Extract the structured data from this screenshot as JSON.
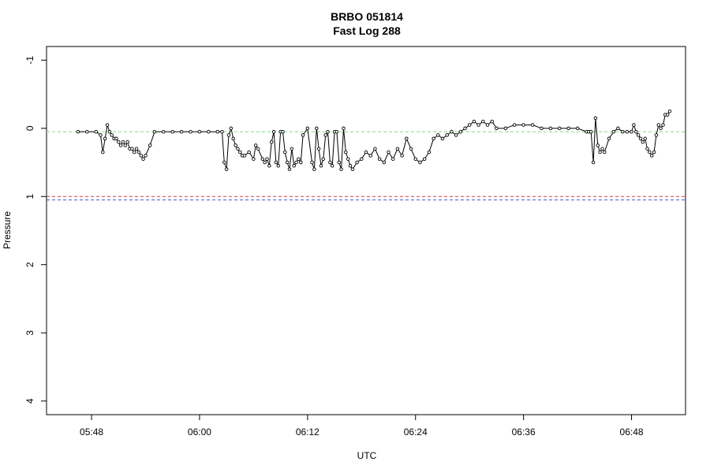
{
  "chart_data": {
    "type": "line",
    "title": "BRBO 051814",
    "subtitle": "Fast Log 288",
    "xlabel": "UTC",
    "ylabel": "Pressure",
    "x_ticks": [
      "05:48",
      "06:00",
      "06:12",
      "06:24",
      "06:36",
      "06:48"
    ],
    "y_ticks": [
      "-1",
      "0",
      "1",
      "2",
      "3",
      "4"
    ],
    "xlim": [
      "05:43",
      "06:54"
    ],
    "ylim": [
      4.2,
      -1.2
    ],
    "y_reversed": true,
    "grid": false,
    "reference_lines": [
      {
        "y": 0.05,
        "color": "#7fdc7f",
        "style": "dashed"
      },
      {
        "y": 1.0,
        "color": "#cc4444",
        "style": "dashed"
      },
      {
        "y": 1.05,
        "color": "#4455cc",
        "style": "dashed"
      }
    ],
    "series": [
      {
        "color": "#000000",
        "marker": "open-circle",
        "x": [
          "05:46:30",
          "05:47:30",
          "05:48:30",
          "05:49:00",
          "05:49:15",
          "05:49:30",
          "05:49:45",
          "05:50:00",
          "05:50:15",
          "05:50:30",
          "05:50:45",
          "05:51:00",
          "05:51:15",
          "05:51:30",
          "05:51:45",
          "05:52:00",
          "05:52:15",
          "05:52:30",
          "05:52:45",
          "05:53:00",
          "05:53:15",
          "05:53:30",
          "05:53:45",
          "05:54:00",
          "05:54:30",
          "05:55:00",
          "05:56:00",
          "05:57:00",
          "05:58:00",
          "05:59:00",
          "06:00:00",
          "06:01:00",
          "06:02:00",
          "06:02:30",
          "06:02:45",
          "06:03:00",
          "06:03:15",
          "06:03:30",
          "06:03:45",
          "06:04:00",
          "06:04:15",
          "06:04:30",
          "06:04:45",
          "06:05:00",
          "06:05:30",
          "06:06:00",
          "06:06:15",
          "06:06:30",
          "06:07:00",
          "06:07:15",
          "06:07:30",
          "06:07:45",
          "06:08:00",
          "06:08:15",
          "06:08:30",
          "06:08:45",
          "06:09:00",
          "06:09:15",
          "06:09:30",
          "06:09:45",
          "06:10:00",
          "06:10:15",
          "06:10:30",
          "06:10:45",
          "06:11:00",
          "06:11:15",
          "06:11:30",
          "06:12:00",
          "06:12:30",
          "06:12:45",
          "06:13:00",
          "06:13:15",
          "06:13:30",
          "06:13:45",
          "06:14:00",
          "06:14:15",
          "06:14:30",
          "06:14:45",
          "06:15:00",
          "06:15:15",
          "06:15:30",
          "06:15:45",
          "06:16:00",
          "06:16:15",
          "06:16:30",
          "06:16:45",
          "06:17:00",
          "06:17:30",
          "06:18:00",
          "06:18:30",
          "06:19:00",
          "06:19:30",
          "06:20:00",
          "06:20:30",
          "06:21:00",
          "06:21:30",
          "06:22:00",
          "06:22:30",
          "06:23:00",
          "06:23:30",
          "06:24:00",
          "06:24:30",
          "06:25:00",
          "06:25:30",
          "06:26:00",
          "06:26:30",
          "06:27:00",
          "06:27:30",
          "06:28:00",
          "06:28:30",
          "06:29:00",
          "06:29:30",
          "06:30:00",
          "06:30:30",
          "06:31:00",
          "06:31:30",
          "06:32:00",
          "06:32:30",
          "06:33:00",
          "06:34:00",
          "06:35:00",
          "06:36:00",
          "06:37:00",
          "06:38:00",
          "06:39:00",
          "06:40:00",
          "06:41:00",
          "06:42:00",
          "06:43:00",
          "06:43:15",
          "06:43:30",
          "06:43:45",
          "06:44:00",
          "06:44:15",
          "06:44:30",
          "06:44:45",
          "06:45:00",
          "06:45:30",
          "06:46:00",
          "06:46:30",
          "06:47:00",
          "06:47:30",
          "06:48:00",
          "06:48:15",
          "06:48:30",
          "06:48:45",
          "06:49:00",
          "06:49:15",
          "06:49:30",
          "06:49:45",
          "06:50:00",
          "06:50:15",
          "06:50:30",
          "06:50:45",
          "06:51:00",
          "06:51:15",
          "06:51:30",
          "06:51:45",
          "06:52:00",
          "06:52:15"
        ],
        "y": [
          0.05,
          0.05,
          0.05,
          0.1,
          0.35,
          0.15,
          -0.05,
          0.05,
          0.1,
          0.15,
          0.15,
          0.2,
          0.25,
          0.2,
          0.25,
          0.2,
          0.3,
          0.3,
          0.35,
          0.3,
          0.35,
          0.4,
          0.45,
          0.4,
          0.25,
          0.05,
          0.05,
          0.05,
          0.05,
          0.05,
          0.05,
          0.05,
          0.05,
          0.05,
          0.5,
          0.6,
          0.1,
          0.0,
          0.15,
          0.25,
          0.3,
          0.35,
          0.4,
          0.4,
          0.35,
          0.45,
          0.25,
          0.3,
          0.45,
          0.5,
          0.45,
          0.55,
          0.2,
          0.05,
          0.5,
          0.55,
          0.05,
          0.05,
          0.35,
          0.5,
          0.6,
          0.3,
          0.55,
          0.5,
          0.45,
          0.5,
          0.1,
          0.0,
          0.5,
          0.6,
          0.0,
          0.3,
          0.55,
          0.45,
          0.1,
          0.05,
          0.5,
          0.55,
          0.05,
          0.05,
          0.5,
          0.6,
          0.0,
          0.35,
          0.45,
          0.55,
          0.6,
          0.5,
          0.45,
          0.35,
          0.4,
          0.3,
          0.45,
          0.5,
          0.35,
          0.45,
          0.3,
          0.4,
          0.15,
          0.3,
          0.45,
          0.5,
          0.45,
          0.35,
          0.15,
          0.1,
          0.15,
          0.1,
          0.05,
          0.1,
          0.05,
          0.0,
          -0.05,
          -0.1,
          -0.05,
          -0.1,
          -0.05,
          -0.1,
          0.0,
          0.0,
          -0.05,
          -0.05,
          -0.05,
          0.0,
          0.0,
          0.0,
          0.0,
          0.0,
          0.05,
          0.05,
          0.05,
          0.5,
          -0.15,
          0.25,
          0.35,
          0.3,
          0.35,
          0.15,
          0.05,
          0.0,
          0.05,
          0.05,
          0.05,
          -0.05,
          0.05,
          0.1,
          0.15,
          0.2,
          0.15,
          0.3,
          0.35,
          0.4,
          0.35,
          0.1,
          -0.05,
          0.0,
          -0.05,
          -0.2,
          -0.2,
          -0.25
        ]
      }
    ]
  }
}
